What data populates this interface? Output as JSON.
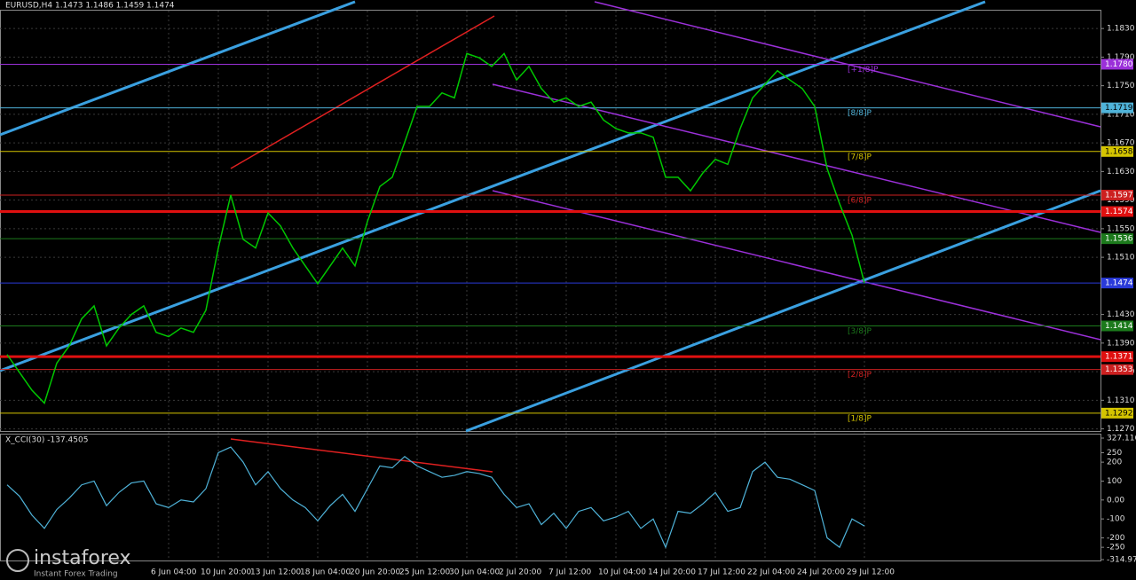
{
  "chart_data": [
    {
      "type": "line",
      "title": "EURUSD,H4  1.1473 1.1486 1.1459 1.1474",
      "x": [
        null,
        null,
        null,
        null,
        null,
        null,
        null,
        null,
        null,
        null,
        null,
        null,
        null,
        "6 Jun 04:00",
        null,
        null,
        null,
        "10 Jun 20:00",
        null,
        null,
        null,
        "13 Jun 12:00",
        null,
        null,
        null,
        "18 Jun 04:00",
        null,
        null,
        null,
        "20 Jun 20:00",
        null,
        null,
        null,
        "25 Jun 12:00",
        null,
        null,
        null,
        "30 Jun 04:00",
        null,
        null,
        null,
        "2 Jul 20:00",
        null,
        null,
        null,
        "7 Jul 12:00",
        null,
        null,
        null,
        "10 Jul 04:00",
        null,
        null,
        null,
        "14 Jul 20:00",
        null,
        null,
        null,
        "17 Jul 12:00",
        null,
        null,
        null,
        "22 Jul 04:00",
        null,
        null,
        null,
        "24 Jul 20:00",
        null,
        null,
        null,
        "29 Jul 12:00"
      ],
      "series": [
        {
          "color": "#00c800",
          "values": [
            1.1374,
            1.1349,
            1.1324,
            1.1306,
            1.1362,
            1.1386,
            1.1424,
            1.1442,
            1.1386,
            1.1411,
            1.143,
            1.1442,
            1.1405,
            1.1399,
            1.1411,
            1.1405,
            1.1436,
            1.1523,
            1.1597,
            1.1535,
            1.1523,
            1.1572,
            1.1554,
            1.1523,
            1.1498,
            1.1473,
            1.1498,
            1.1523,
            1.1498,
            1.156,
            1.1609,
            1.1622,
            1.1671,
            1.1721,
            1.1721,
            1.174,
            1.1733,
            1.1795,
            1.1789,
            1.1777,
            1.1795,
            1.1758,
            1.1777,
            1.1746,
            1.1727,
            1.1733,
            1.1721,
            1.1727,
            1.1702,
            1.169,
            1.1684,
            1.1684,
            1.1678,
            1.1622,
            1.1622,
            1.1603,
            1.1628,
            1.1647,
            1.164,
            1.169,
            1.1733,
            1.1752,
            1.1771,
            1.1758,
            1.1746,
            1.1721,
            1.1634,
            1.1585,
            1.1541,
            1.1474
          ]
        }
      ],
      "ylim": [
        1.1267,
        1.1855
      ],
      "yticks": [
        {
          "value": 1.183,
          "label": "1.1830"
        },
        {
          "value": 1.179,
          "label": "1.1790"
        },
        {
          "value": 1.175,
          "label": "1.1750"
        },
        {
          "value": 1.171,
          "label": "1.1710"
        },
        {
          "value": 1.167,
          "label": "1.1670"
        },
        {
          "value": 1.163,
          "label": "1.1630"
        },
        {
          "value": 1.159,
          "label": "1.1590"
        },
        {
          "value": 1.155,
          "label": "1.1550"
        },
        {
          "value": 1.151,
          "label": "1.1510"
        },
        {
          "value": 1.143,
          "label": "1.1430"
        },
        {
          "value": 1.139,
          "label": "1.1390"
        },
        {
          "value": 1.135,
          "label": "1.1350"
        },
        {
          "value": 1.131,
          "label": "1.1310"
        },
        {
          "value": 1.127,
          "label": "1.1270"
        }
      ],
      "levels": {
        "values": [
          1.178,
          1.1719,
          1.1658,
          1.1597,
          1.1574,
          1.1536,
          1.1474,
          1.1414,
          1.1371,
          1.1353,
          1.1292
        ],
        "value_labels": [
          "1.1780",
          "1.1719",
          "1.1658",
          "1.1597",
          "1.1574",
          "1.1536",
          "1.1474",
          "1.1414",
          "1.1371",
          "1.1353",
          "1.1292"
        ],
        "colors": [
          "#9b30d9",
          "#4fb3d9",
          "#d4c400",
          "#cc2020",
          "#e01010",
          "#1c7a1c",
          "#2a3ad9",
          "#1c7a1c",
          "#e01010",
          "#cc2020",
          "#d4c400"
        ],
        "widths": [
          1,
          1,
          1,
          1,
          3,
          1,
          1,
          1,
          3,
          1,
          1
        ],
        "murray": [
          "[+1/8]P",
          "[8/8]P",
          "[7/8]P",
          "[6/8]P",
          null,
          null,
          null,
          "[3/8]P",
          null,
          "[2/8]P",
          "[1/8]P"
        ]
      },
      "grid": true
    },
    {
      "type": "line",
      "title": "X_CCI(30) -137.4505",
      "series": [
        {
          "color": "#4fb3d9",
          "values": [
            80,
            20,
            -80,
            -150,
            -50,
            10,
            80,
            100,
            -30,
            40,
            90,
            100,
            -20,
            -40,
            0,
            -10,
            60,
            250,
            280,
            200,
            80,
            150,
            60,
            0,
            -40,
            -110,
            -30,
            30,
            -60,
            60,
            180,
            170,
            230,
            180,
            150,
            120,
            130,
            150,
            140,
            120,
            30,
            -40,
            -20,
            -130,
            -70,
            -150,
            -60,
            -40,
            -110,
            -90,
            -60,
            -150,
            -100,
            -250,
            -60,
            -70,
            -20,
            40,
            -60,
            -40,
            150,
            200,
            120,
            110,
            80,
            50,
            -200,
            -250,
            -100,
            -137.4505
          ]
        }
      ],
      "ylim": [
        -314.975,
        327.116
      ],
      "yticks": [
        327.116,
        250,
        200,
        100,
        {
          "value": 0,
          "label": "0.00"
        },
        -100,
        -200,
        -250,
        -314.975
      ]
    }
  ],
  "logo": {
    "brand": "instaforex",
    "tagline": "Instant Forex Trading"
  }
}
